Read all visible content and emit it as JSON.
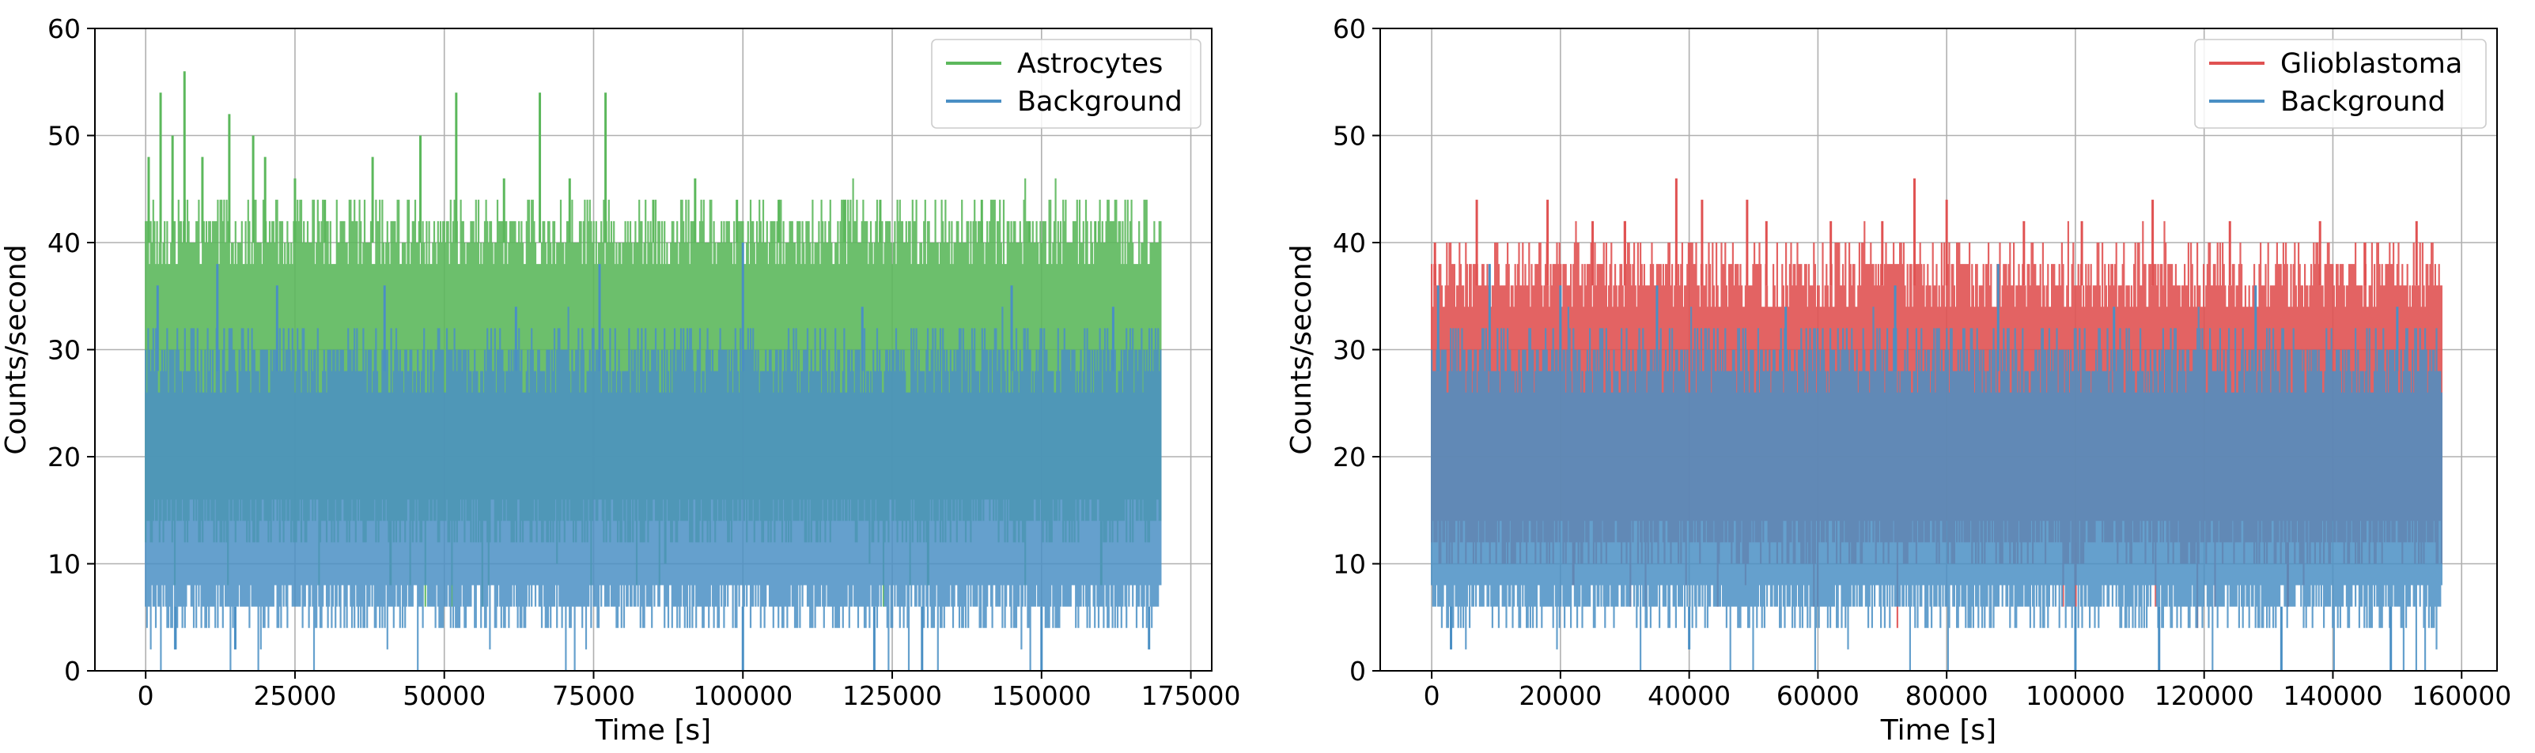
{
  "chart_data": [
    {
      "type": "line",
      "xlabel": "Time [s]",
      "ylabel": "Counts/second",
      "xlim": [
        -8500,
        178500
      ],
      "ylim": [
        0,
        60
      ],
      "xticks": [
        0,
        25000,
        50000,
        75000,
        100000,
        125000,
        150000,
        175000
      ],
      "xtick_labels": [
        "0",
        "25000",
        "50000",
        "75000",
        "100000",
        "125000",
        "150000",
        "175000"
      ],
      "yticks": [
        0,
        10,
        20,
        30,
        40,
        50,
        60
      ],
      "ytick_labels": [
        "0",
        "10",
        "20",
        "30",
        "40",
        "50",
        "60"
      ],
      "grid": true,
      "legend_position": "top-right",
      "x_end": 170000,
      "series": [
        {
          "name": "Astrocytes",
          "color": "#5cb85c",
          "band_low": 12,
          "band_high": 42,
          "dense_high": 40,
          "spikes": [
            {
              "x": 500,
              "y": 48
            },
            {
              "x": 2500,
              "y": 54
            },
            {
              "x": 4500,
              "y": 50
            },
            {
              "x": 6500,
              "y": 56
            },
            {
              "x": 9500,
              "y": 48
            },
            {
              "x": 14000,
              "y": 52
            },
            {
              "x": 18000,
              "y": 50
            },
            {
              "x": 20000,
              "y": 48
            },
            {
              "x": 25000,
              "y": 46
            },
            {
              "x": 30000,
              "y": 44
            },
            {
              "x": 38000,
              "y": 48
            },
            {
              "x": 46000,
              "y": 50
            },
            {
              "x": 52000,
              "y": 54
            },
            {
              "x": 60000,
              "y": 46
            },
            {
              "x": 66000,
              "y": 54
            },
            {
              "x": 71000,
              "y": 46
            },
            {
              "x": 77000,
              "y": 54
            },
            {
              "x": 85000,
              "y": 44
            },
            {
              "x": 92000,
              "y": 46
            },
            {
              "x": 99000,
              "y": 44
            },
            {
              "x": 106000,
              "y": 44
            },
            {
              "x": 117000,
              "y": 44
            },
            {
              "x": 123000,
              "y": 44
            },
            {
              "x": 140000,
              "y": 44
            },
            {
              "x": 148000,
              "y": 42
            },
            {
              "x": 159000,
              "y": 42
            },
            {
              "x": 165000,
              "y": 40
            }
          ],
          "dips": [
            {
              "x": 41000,
              "y": 8
            },
            {
              "x": 87000,
              "y": 10
            },
            {
              "x": 131000,
              "y": 8
            },
            {
              "x": 160000,
              "y": 8
            }
          ]
        },
        {
          "name": "Background",
          "color": "#4a8fc4",
          "band_low": 4,
          "band_high": 30,
          "dense_high": 28,
          "spikes": [
            {
              "x": 2000,
              "y": 36
            },
            {
              "x": 12000,
              "y": 38
            },
            {
              "x": 22000,
              "y": 36
            },
            {
              "x": 40000,
              "y": 36
            },
            {
              "x": 62000,
              "y": 34
            },
            {
              "x": 76000,
              "y": 38
            },
            {
              "x": 100000,
              "y": 40
            },
            {
              "x": 120000,
              "y": 34
            },
            {
              "x": 145000,
              "y": 36
            },
            {
              "x": 162000,
              "y": 34
            }
          ],
          "dips": [
            {
              "x": 5000,
              "y": 2
            },
            {
              "x": 15000,
              "y": 2
            },
            {
              "x": 100000,
              "y": 0
            },
            {
              "x": 122000,
              "y": 0
            },
            {
              "x": 130000,
              "y": 0
            },
            {
              "x": 150000,
              "y": 0
            },
            {
              "x": 168000,
              "y": 2
            }
          ]
        }
      ]
    },
    {
      "type": "line",
      "xlabel": "Time [s]",
      "ylabel": "Counts/second",
      "xlim": [
        -8000,
        165500
      ],
      "ylim": [
        0,
        60
      ],
      "xticks": [
        0,
        20000,
        40000,
        60000,
        80000,
        100000,
        120000,
        140000,
        160000
      ],
      "xtick_labels": [
        "0",
        "20000",
        "40000",
        "60000",
        "80000",
        "100000",
        "120000",
        "140000",
        "160000"
      ],
      "yticks": [
        0,
        10,
        20,
        30,
        40,
        50,
        60
      ],
      "ytick_labels": [
        "0",
        "10",
        "20",
        "30",
        "40",
        "50",
        "60"
      ],
      "grid": true,
      "legend_position": "top-right",
      "x_end": 157000,
      "series": [
        {
          "name": "Glioblastoma",
          "color": "#e05252",
          "band_low": 10,
          "band_high": 38,
          "dense_high": 36,
          "spikes": [
            {
              "x": 500,
              "y": 40
            },
            {
              "x": 7000,
              "y": 44
            },
            {
              "x": 18000,
              "y": 44
            },
            {
              "x": 25000,
              "y": 42
            },
            {
              "x": 30000,
              "y": 42
            },
            {
              "x": 38000,
              "y": 46
            },
            {
              "x": 42000,
              "y": 44
            },
            {
              "x": 49000,
              "y": 44
            },
            {
              "x": 52000,
              "y": 42
            },
            {
              "x": 62000,
              "y": 42
            },
            {
              "x": 70000,
              "y": 42
            },
            {
              "x": 75000,
              "y": 46
            },
            {
              "x": 80000,
              "y": 44
            },
            {
              "x": 92000,
              "y": 42
            },
            {
              "x": 101000,
              "y": 42
            },
            {
              "x": 112000,
              "y": 44
            },
            {
              "x": 124000,
              "y": 42
            },
            {
              "x": 138000,
              "y": 42
            },
            {
              "x": 145000,
              "y": 40
            },
            {
              "x": 153000,
              "y": 42
            }
          ],
          "dips": [
            {
              "x": 22000,
              "y": 8
            },
            {
              "x": 100000,
              "y": 6
            },
            {
              "x": 133000,
              "y": 6
            }
          ]
        },
        {
          "name": "Background",
          "color": "#4a8fc4",
          "band_low": 4,
          "band_high": 30,
          "dense_high": 28,
          "spikes": [
            {
              "x": 1000,
              "y": 36
            },
            {
              "x": 9000,
              "y": 38
            },
            {
              "x": 20000,
              "y": 36
            },
            {
              "x": 35000,
              "y": 36
            },
            {
              "x": 55000,
              "y": 34
            },
            {
              "x": 72000,
              "y": 36
            },
            {
              "x": 88000,
              "y": 38
            },
            {
              "x": 106000,
              "y": 34
            },
            {
              "x": 128000,
              "y": 36
            },
            {
              "x": 150000,
              "y": 34
            }
          ],
          "dips": [
            {
              "x": 3000,
              "y": 2
            },
            {
              "x": 40000,
              "y": 2
            },
            {
              "x": 100000,
              "y": 0
            },
            {
              "x": 113000,
              "y": 0
            },
            {
              "x": 132000,
              "y": 0
            },
            {
              "x": 149000,
              "y": 0
            }
          ]
        }
      ]
    }
  ]
}
